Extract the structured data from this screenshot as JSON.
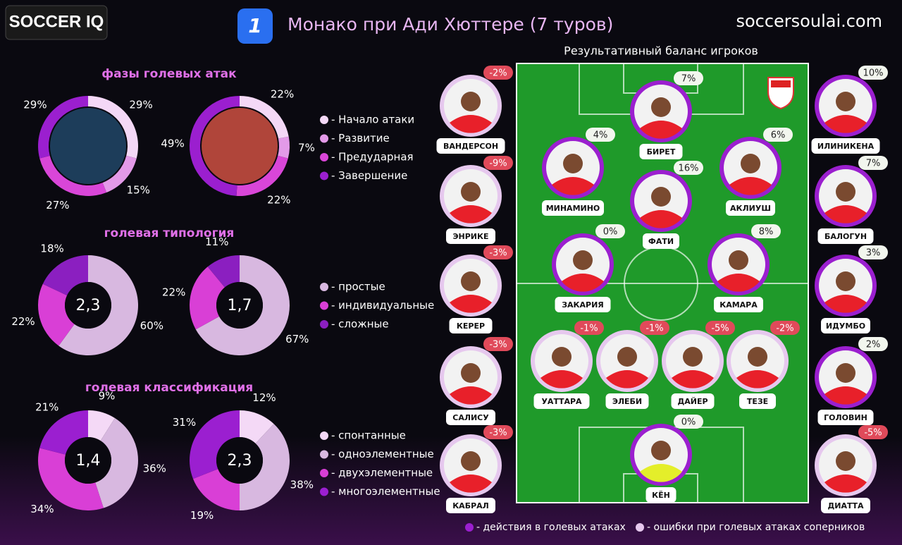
{
  "header": {
    "logo": "SOCCER IQ",
    "title": "Монако при Ади Хюттере (7 туров)",
    "site": "soccersoulai.com"
  },
  "chart_data": [
    {
      "type": "donut",
      "title": "фазы голевых атак",
      "categories": [
        "- Начало атаки",
        "- Развитие",
        "- Предударная",
        "- Завершение"
      ],
      "colors": [
        "#f4d8f6",
        "#e39ae8",
        "#d946d8",
        "#9b1fcf"
      ],
      "pies": [
        {
          "values": [
            29,
            15,
            27,
            29
          ],
          "value_labels": [
            "29%",
            "15%",
            "27%",
            "29%"
          ]
        },
        {
          "values": [
            22,
            7,
            22,
            49
          ],
          "value_labels": [
            "22%",
            "7%",
            "22%",
            "49%"
          ]
        }
      ]
    },
    {
      "type": "donut",
      "title": "голевая типология",
      "categories": [
        "- простые",
        "- индивидуальные",
        "- сложные"
      ],
      "colors": [
        "#d8b8e0",
        "#d93fd6",
        "#8b1fc0"
      ],
      "pies": [
        {
          "values": [
            60,
            22,
            18
          ],
          "value_labels": [
            "60%",
            "22%",
            "18%"
          ],
          "center_label": "2,3"
        },
        {
          "values": [
            67,
            22,
            11
          ],
          "value_labels": [
            "67%",
            "22%",
            "11%"
          ],
          "center_label": "1,7"
        }
      ]
    },
    {
      "type": "donut",
      "title": "голевая классификация",
      "categories": [
        "- спонтанные",
        "- одноэлементные",
        "- двухэлементные",
        "- многоэлементные"
      ],
      "colors": [
        "#f4d9f6",
        "#d8b8e0",
        "#d93fd6",
        "#9b1fd0"
      ],
      "pies": [
        {
          "values": [
            9,
            36,
            34,
            21
          ],
          "value_labels": [
            "9%",
            "36%",
            "34%",
            "21%"
          ],
          "center_label": "1,4"
        },
        {
          "values": [
            12,
            38,
            19,
            31
          ],
          "value_labels": [
            "12%",
            "38%",
            "19%",
            "31%"
          ],
          "center_label": "2,3"
        }
      ]
    }
  ],
  "pitch": {
    "title": "Результативный баланс игроков",
    "players": [
      {
        "name": "ВАНДЕРСОН",
        "pct": "-2%"
      },
      {
        "name": "ЭНРИКЕ",
        "pct": "-9%"
      },
      {
        "name": "КЕРЕР",
        "pct": "-3%"
      },
      {
        "name": "САЛИСУ",
        "pct": "-3%"
      },
      {
        "name": "КАБРАЛ",
        "pct": "-3%"
      },
      {
        "name": "ИЛИНИКЕНА",
        "pct": "10%"
      },
      {
        "name": "БАЛОГУН",
        "pct": "7%"
      },
      {
        "name": "ИДУМБО",
        "pct": "3%"
      },
      {
        "name": "ГОЛОВИН",
        "pct": "2%"
      },
      {
        "name": "ДИАТТА",
        "pct": "-5%"
      },
      {
        "name": "БИРЕТ",
        "pct": "7%"
      },
      {
        "name": "МИНАМИНО",
        "pct": "4%"
      },
      {
        "name": "АКЛИУШ",
        "pct": "6%"
      },
      {
        "name": "ФАТИ",
        "pct": "16%"
      },
      {
        "name": "ЗАКАРИЯ",
        "pct": "0%"
      },
      {
        "name": "КАМАРА",
        "pct": "8%"
      },
      {
        "name": "УАТТАРА",
        "pct": "-1%"
      },
      {
        "name": "ЭЛЕБИ",
        "pct": "-1%"
      },
      {
        "name": "ДАЙЕР",
        "pct": "-5%"
      },
      {
        "name": "ТЕЗЕ",
        "pct": "-2%"
      },
      {
        "name": "КЁН",
        "pct": "0%"
      }
    ],
    "legend": [
      "- действия в голевых атаках",
      "- ошибки при голевых атаках соперников"
    ]
  }
}
